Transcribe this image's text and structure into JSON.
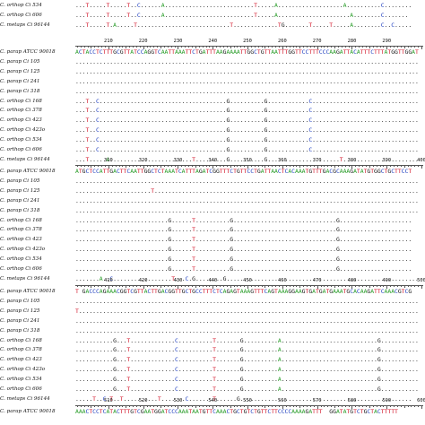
{
  "blocks": [
    {
      "numbers": [],
      "rows": [
        {
          "label": "C. orthop Ci 534",
          "seq": "...T.....T.....T..C......A..........................T.....A...................A..........C........"
        },
        {
          "label": "C. orthop Ci 606",
          "seq": "...T.....T.....T..C......A..........................T.....A.....................A........C......."
        },
        {
          "label": "C. metaps Ci 96144",
          "seq": "...T.....T.A.....T...........................T.............TG.......T.....T.....A........C..C....."
        }
      ]
    },
    {
      "numbers": [
        "210",
        "220",
        "230",
        "240",
        "250",
        "260",
        "270",
        "280",
        "290"
      ],
      "rows": [
        {
          "label": "C. parap ATCC 90018",
          "seq": "ACTACCTCTTTGCGTTATCCAGGTCAATTAAATTCTGATTTAAGAAAATTGGCTGTTAATTTGGTTCCTTTCCCAAGATTACATTTCTTTATGGTTGGAT"
        },
        {
          "label": "C. parap Ci 105",
          "seq": "...................................................................................................."
        },
        {
          "label": "C. parap Ci 125",
          "seq": "...................................................................................................."
        },
        {
          "label": "C. parap Ci 241",
          "seq": "...................................................................................................."
        },
        {
          "label": "C. parap Ci 318",
          "seq": "...................................................................................................."
        },
        {
          "label": "C. orthop Ci 168",
          "seq": "...T..C.....................................G..........G............C..............................."
        },
        {
          "label": "C. orthop Ci 378",
          "seq": "...T..C.....................................G..........G............C..............................."
        },
        {
          "label": "C. orthop Ci 423",
          "seq": "...T..C.....................................G..........G............C..............................."
        },
        {
          "label": "C. orthop Ci 423o",
          "seq": "...T..C.....................................G..........G............C..............................."
        },
        {
          "label": "C. orthop Ci 534",
          "seq": "...T..C.....................................G..........G............C..............................."
        },
        {
          "label": "C. orthop Ci 606",
          "seq": "...T..C.....................................G..........G............C..............................."
        },
        {
          "label": "C. metaps Ci 96144",
          "seq": "...T.....A........................T.........G..........G.....................T......................"
        }
      ]
    },
    {
      "numbers": [
        "310",
        "320",
        "330",
        "340",
        "350",
        "360",
        "370",
        "380",
        "390",
        "400"
      ],
      "rows": [
        {
          "label": "C. parap ATCC 90018",
          "seq": "ATGCTCCATTGACTTCAATTGGCTCTAAATCATTTAGATCGGTTTCTGTTCCTGATTAACTCACAAATGTTTGACGCAAAGATATGTGGCTGCTTCCT"
        },
        {
          "label": "C. parap Ci 105",
          "seq": "...................................................................................................."
        },
        {
          "label": "C. parap Ci 125",
          "seq": "......................T............................................................................."
        },
        {
          "label": "C. parap Ci 241",
          "seq": "...................................................................................................."
        },
        {
          "label": "C. parap Ci 318",
          "seq": "...................................................................................................."
        },
        {
          "label": "C. orthop Ci 168",
          "seq": "...........................G......T..........G..............................G....................."
        },
        {
          "label": "C. orthop Ci 378",
          "seq": "...........................G......T..........G..............................G....................."
        },
        {
          "label": "C. orthop Ci 423",
          "seq": "...........................G......T..........G..............................G....................."
        },
        {
          "label": "C. orthop Ci 423o",
          "seq": "...........................G......T..........G..............................G....................."
        },
        {
          "label": "C. orthop Ci 534",
          "seq": "...........................G......T..........G..............................G....................."
        },
        {
          "label": "C. orthop Ci 606",
          "seq": "...........................G......T..........G..............................G....................."
        },
        {
          "label": "C. metaps Ci 96144",
          "seq": ".......A..C.................T...C.G........G........................................................"
        }
      ]
    },
    {
      "numbers": [
        "410",
        "420",
        "430",
        "440",
        "450",
        "460",
        "470",
        "480",
        "490",
        "500"
      ],
      "rows": [
        {
          "label": "C. parap ATCC 90018",
          "seq": "T GACCCAGAAACGGTCGTTACTTGACGGTTGCTGCCTTTCTCAGAGTAAAGTTTCAGTAAAGGAAGTGATGATGAAATGCACAAGATTCAAACGTCG"
        },
        {
          "label": "C. parap Ci 105",
          "seq": "...................................................................................................."
        },
        {
          "label": "C. parap Ci 125",
          "seq": "T..................................................................................................."
        },
        {
          "label": "C. parap Ci 241",
          "seq": "...................................................................................................."
        },
        {
          "label": "C. parap Ci 318",
          "seq": "...................................................................................................."
        },
        {
          "label": "C. orthop Ci 168",
          "seq": "...........G...T.............C..........T.......G..........A............................G..........."
        },
        {
          "label": "C. orthop Ci 378",
          "seq": "...........G...T.............C..........T.......G..........A............................G..........."
        },
        {
          "label": "C. orthop Ci 423",
          "seq": "...........G...T.............C..........T.......G..........A............................G..........."
        },
        {
          "label": "C. orthop Ci 423o",
          "seq": "...........G...T.............C..........T.......G..........A............................G..........."
        },
        {
          "label": "C. orthop Ci 534",
          "seq": "...........G...T.............C..........T.......G..........A............................G..........."
        },
        {
          "label": "C. orthop Ci 606",
          "seq": "...........G...T.............C..........T.......G..........A............................G..........."
        },
        {
          "label": "C. metaps Ci 96144",
          "seq": ".....T..C.T..T..........T.......C.......T......G.................................................."
        }
      ]
    },
    {
      "numbers": [
        "510",
        "520",
        "530",
        "540",
        "550",
        "560",
        "570",
        "580",
        "590",
        "600"
      ],
      "rows": [
        {
          "label": "C. parap ATCC 90018",
          "seq": "AAACTCCTCATACTTTGTCGAATGGATCCCAAATAATGTTCAAACTGCTGTCTGTTCTTCCCCAAAAGATTT  GGATATGTCTGCTACTTTTT"
        }
      ]
    }
  ]
}
